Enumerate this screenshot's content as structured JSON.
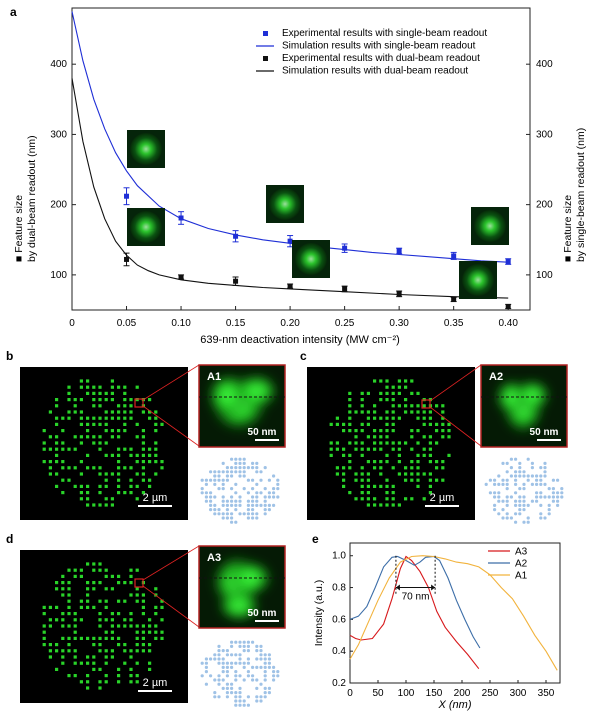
{
  "panel_labels": {
    "a": "a",
    "b": "b",
    "c": "c",
    "d": "d",
    "e": "e"
  },
  "colors": {
    "blue": "#1f2fd6",
    "black": "#111111",
    "red": "#d7191c",
    "steel": "#3d6ea8",
    "orange": "#f2b33d",
    "green": "#2eea2e",
    "inset_border": "#b22222",
    "dot_blue": "#9fc2e6"
  },
  "panel_a": {
    "legend": [
      {
        "label": "Experimental results with single-beam readout",
        "kind": "square",
        "color": "#1f2fd6"
      },
      {
        "label": "Simulation results with single-beam readout",
        "kind": "line",
        "color": "#1f2fd6"
      },
      {
        "label": "Experimental results with dual-beam readout",
        "kind": "square",
        "color": "#111111"
      },
      {
        "label": "Simulation results with dual-beam readout",
        "kind": "line",
        "color": "#111111"
      }
    ],
    "ylabel_left_line1": "■ Feature size",
    "ylabel_left_line2": "by dual-beam readout (nm)",
    "ylabel_right_line1": "■ Feature size",
    "ylabel_right_line2": "by single-beam readout (nm)",
    "xlabel": "639-nm deactivation intensity (MW cm⁻²)"
  },
  "chart_data": [
    {
      "type": "scatter",
      "xlabel": "639-nm deactivation intensity (MW cm⁻²)",
      "ylabel": "Feature size (nm)",
      "xlim": [
        0,
        0.42
      ],
      "ylim": [
        50,
        480
      ],
      "xticks": [
        0,
        0.05,
        0.1,
        0.15,
        0.2,
        0.25,
        0.3,
        0.35,
        0.4
      ],
      "xtick_labels": [
        "0",
        "0.05",
        "0.10",
        "0.15",
        "0.20",
        "0.25",
        "0.30",
        "0.35",
        "0.40"
      ],
      "yticks": [
        100,
        200,
        300,
        400
      ],
      "ytick_labels": [
        "100",
        "200",
        "300",
        "400"
      ],
      "series": [
        {
          "name": "Experimental results with single-beam readout",
          "kind": "points",
          "color": "#1f2fd6",
          "x": [
            0.05,
            0.1,
            0.15,
            0.2,
            0.25,
            0.3,
            0.35,
            0.4
          ],
          "y": [
            212,
            181,
            155,
            148,
            138,
            134,
            127,
            119
          ],
          "err": [
            12,
            9,
            8,
            8,
            6,
            4,
            5,
            4
          ]
        },
        {
          "name": "Experimental results with dual-beam readout",
          "kind": "points",
          "color": "#111111",
          "x": [
            0.05,
            0.1,
            0.15,
            0.2,
            0.25,
            0.3,
            0.35,
            0.4
          ],
          "y": [
            122,
            97,
            91,
            84,
            80,
            73,
            65,
            55
          ],
          "err": [
            9,
            3,
            6,
            3,
            4,
            4,
            3,
            3
          ]
        },
        {
          "name": "Simulation results with single-beam readout",
          "kind": "line",
          "color": "#1f2fd6",
          "x": [
            0,
            0.01,
            0.02,
            0.03,
            0.04,
            0.05,
            0.06,
            0.08,
            0.1,
            0.125,
            0.15,
            0.175,
            0.2,
            0.225,
            0.25,
            0.275,
            0.3,
            0.325,
            0.35,
            0.375,
            0.4
          ],
          "y": [
            475,
            405,
            350,
            308,
            274,
            248,
            227,
            198,
            180,
            166,
            157,
            150,
            145,
            140,
            136,
            132,
            129,
            126,
            123,
            120,
            118
          ]
        },
        {
          "name": "Simulation results with dual-beam readout",
          "kind": "line",
          "color": "#111111",
          "x": [
            0,
            0.01,
            0.02,
            0.03,
            0.04,
            0.05,
            0.06,
            0.07,
            0.08,
            0.1,
            0.125,
            0.15,
            0.175,
            0.2,
            0.25,
            0.3,
            0.35,
            0.4
          ],
          "y": [
            380,
            290,
            225,
            180,
            148,
            128,
            114,
            106,
            100,
            93,
            88,
            85,
            82,
            80,
            76,
            72,
            69,
            67
          ]
        }
      ]
    },
    {
      "type": "line",
      "xlabel": "X (nm)",
      "ylabel": "Intensity (a.u.)",
      "xlim": [
        0,
        375
      ],
      "ylim": [
        0.2,
        1.08
      ],
      "xticks": [
        0,
        50,
        100,
        150,
        200,
        250,
        300,
        350
      ],
      "yticks": [
        0.2,
        0.4,
        0.6,
        0.8,
        1.0
      ],
      "ytick_labels": [
        "0.2",
        "0.4",
        "0.6",
        "0.8",
        "1.0"
      ],
      "annotation": "70 nm",
      "series": [
        {
          "name": "A3",
          "color": "#d7191c",
          "x": [
            0,
            10,
            20,
            40,
            60,
            75,
            90,
            100,
            110,
            125,
            140,
            155,
            170,
            190,
            210,
            230
          ],
          "y": [
            0.5,
            0.48,
            0.47,
            0.48,
            0.57,
            0.73,
            0.92,
            0.995,
            0.97,
            0.9,
            0.8,
            0.65,
            0.55,
            0.46,
            0.38,
            0.29
          ]
        },
        {
          "name": "A2",
          "color": "#3d6ea8",
          "x": [
            0,
            15,
            30,
            45,
            60,
            75,
            85,
            100,
            115,
            125,
            135,
            150,
            160,
            175,
            190,
            205,
            220,
            232
          ],
          "y": [
            0.6,
            0.62,
            0.68,
            0.8,
            0.93,
            0.99,
            0.995,
            0.97,
            0.94,
            0.96,
            0.99,
            0.995,
            0.97,
            0.86,
            0.72,
            0.6,
            0.49,
            0.42
          ]
        },
        {
          "name": "A1",
          "color": "#f2b33d",
          "x": [
            0,
            15,
            30,
            50,
            70,
            90,
            110,
            130,
            150,
            170,
            190,
            210,
            230,
            250,
            270,
            290,
            310,
            330,
            350,
            370
          ],
          "y": [
            0.35,
            0.44,
            0.56,
            0.72,
            0.86,
            0.96,
            0.995,
            1.0,
            0.995,
            0.98,
            0.96,
            0.95,
            0.93,
            0.88,
            0.8,
            0.73,
            0.62,
            0.5,
            0.4,
            0.28
          ]
        }
      ]
    }
  ],
  "panel_b": {
    "inset_label": "A1",
    "inset_scale": "50 nm",
    "scale": "2 µm"
  },
  "panel_c": {
    "inset_label": "A2",
    "inset_scale": "50 nm",
    "scale": "2 µm"
  },
  "panel_d": {
    "inset_label": "A3",
    "inset_scale": "50 nm",
    "scale": "2 µm"
  }
}
